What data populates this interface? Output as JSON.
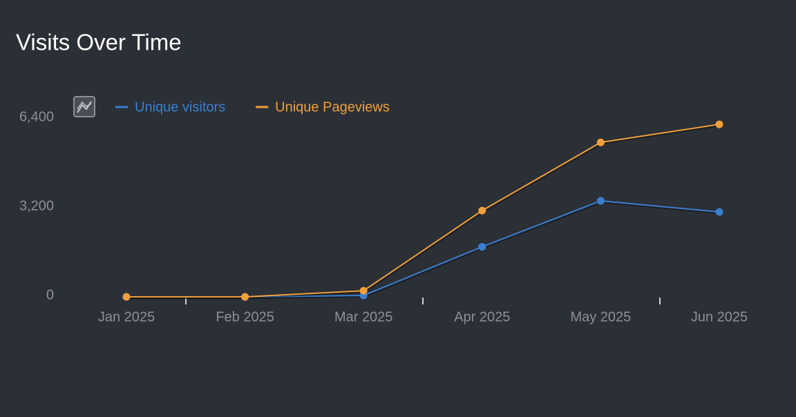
{
  "chart_data": {
    "type": "line",
    "title": "Visits Over Time",
    "categories": [
      "Jan 2025",
      "Feb 2025",
      "Mar 2025",
      "Apr 2025",
      "May 2025",
      "Jun 2025"
    ],
    "series": [
      {
        "name": "Unique visitors",
        "color": "#3b7fd1",
        "values": [
          0,
          0,
          50,
          1800,
          3450,
          3050
        ]
      },
      {
        "name": "Unique Pageviews",
        "color": "#f0a03a",
        "values": [
          0,
          0,
          220,
          3100,
          5550,
          6200
        ]
      }
    ],
    "ylim": [
      0,
      6400
    ],
    "yticks": [
      0,
      {
        "value": 3200,
        "label": "3,200"
      },
      {
        "value": 6400,
        "label": "6,400"
      }
    ],
    "grid": false
  }
}
